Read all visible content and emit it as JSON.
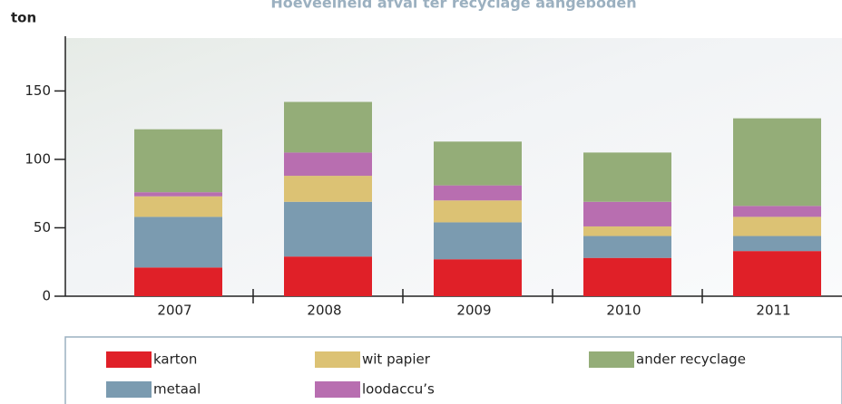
{
  "chart_data": {
    "type": "stacked_bar",
    "title": "Hoeveelheid afval ter recyclage aangeboden",
    "y_label": "ton",
    "categories": [
      "2007",
      "2008",
      "2009",
      "2010",
      "2011"
    ],
    "series": [
      {
        "name": "karton",
        "color": "#e02028",
        "values": [
          21,
          29,
          27,
          28,
          33
        ]
      },
      {
        "name": "metaal",
        "color": "#7b9bb0",
        "values": [
          37,
          40,
          27,
          16,
          11
        ]
      },
      {
        "name": "wit papier",
        "color": "#dcc274",
        "values": [
          15,
          19,
          16,
          7,
          14
        ]
      },
      {
        "name": "loodaccu’s",
        "color": "#b86eb0",
        "values": [
          3,
          17,
          11,
          18,
          8
        ]
      },
      {
        "name": "ander recyclage",
        "color": "#94ad78",
        "values": [
          46,
          37,
          32,
          36,
          64
        ]
      }
    ],
    "ylim": [
      0,
      190
    ],
    "yticks": [
      0,
      50,
      100,
      150
    ]
  }
}
